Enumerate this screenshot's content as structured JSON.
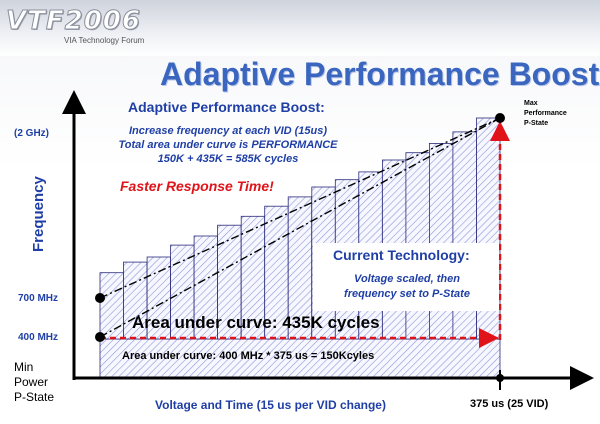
{
  "logo": {
    "mark": "VTF2006",
    "tagline": "VIA Technology Forum"
  },
  "slide_title": "Adaptive Performance Boost",
  "apb_block": {
    "heading": "Adaptive Performance Boost:",
    "lines": [
      "Increase frequency at each VID (15us)",
      "Total area under curve is PERFORMANCE",
      "150K + 435K = 585K cycles"
    ]
  },
  "faster_response": "Faster Response Time!",
  "current_tech": {
    "heading": "Current Technology:",
    "lines": [
      "Voltage scaled, then",
      "frequency set to P-State"
    ]
  },
  "area_under_curve": "Area under curve: 435K cycles",
  "area_base": "Area under curve: 400 MHz * 375 us = 150Kcyles",
  "y_axis": {
    "title": "Frequency",
    "labels": {
      "top": "(2 GHz)",
      "mid": "700 MHz",
      "low": "400 MHz"
    }
  },
  "min_power": [
    "Min",
    "Power",
    "P-State"
  ],
  "x_axis": {
    "title": "Voltage and Time (15 us per VID change)",
    "end_label": "375 us (25 VID)"
  },
  "max_performance": [
    "Max",
    "Performance",
    "P-State"
  ],
  "step_heights_relative": [
    0.3,
    0.348,
    0.371,
    0.425,
    0.466,
    0.515,
    0.555,
    0.601,
    0.643,
    0.688,
    0.721,
    0.756,
    0.81,
    0.843,
    0.885,
    0.937,
    1.0
  ],
  "colors": {
    "title": "#3a66c0",
    "text_blue": "#1f3fa6",
    "accent_red": "#e0131a",
    "bar_stroke": "#2a2a7a",
    "hatch": "#8f96d8"
  }
}
